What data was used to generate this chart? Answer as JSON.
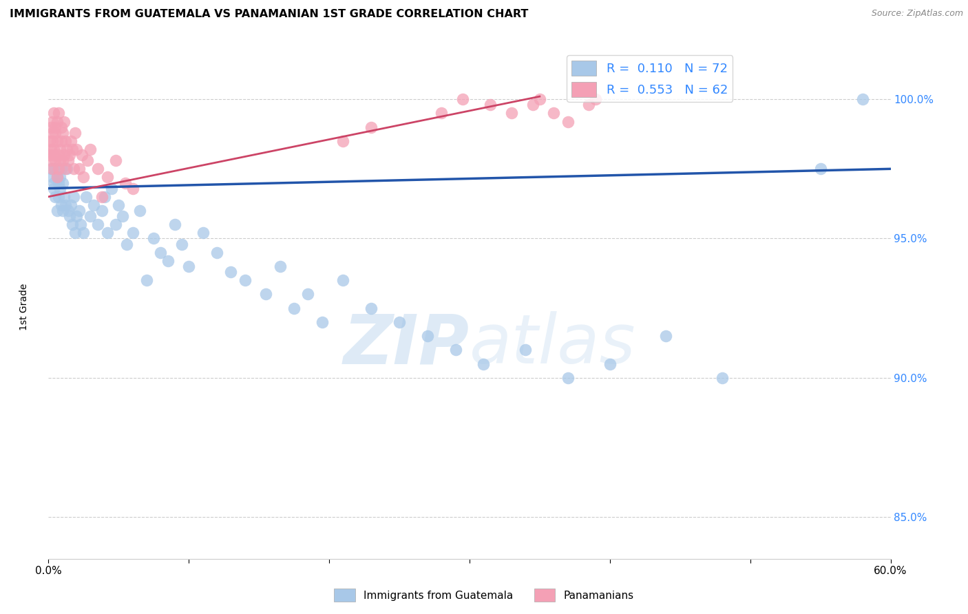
{
  "title": "IMMIGRANTS FROM GUATEMALA VS PANAMANIAN 1ST GRADE CORRELATION CHART",
  "source": "Source: ZipAtlas.com",
  "ylabel": "1st Grade",
  "yticks": [
    85.0,
    90.0,
    95.0,
    100.0
  ],
  "ytick_labels": [
    "85.0%",
    "90.0%",
    "95.0%",
    "100.0%"
  ],
  "xlim": [
    0.0,
    0.6
  ],
  "ylim": [
    83.5,
    101.8
  ],
  "legend_blue_r": "0.110",
  "legend_blue_n": "72",
  "legend_pink_r": "0.553",
  "legend_pink_n": "62",
  "legend_label_blue": "Immigrants from Guatemala",
  "legend_label_pink": "Panamanians",
  "blue_color": "#a8c8e8",
  "pink_color": "#f4a0b5",
  "line_blue_color": "#2255aa",
  "line_pink_color": "#cc4466",
  "watermark_zip": "ZIP",
  "watermark_atlas": "atlas",
  "blue_line_x0": 0.0,
  "blue_line_x1": 0.6,
  "blue_line_y0": 96.8,
  "blue_line_y1": 97.5,
  "pink_line_x0": 0.0,
  "pink_line_x1": 0.35,
  "pink_line_y0": 96.5,
  "pink_line_y1": 100.1,
  "blue_scatter_x": [
    0.002,
    0.003,
    0.004,
    0.004,
    0.005,
    0.005,
    0.006,
    0.006,
    0.007,
    0.007,
    0.008,
    0.008,
    0.009,
    0.009,
    0.01,
    0.01,
    0.011,
    0.012,
    0.013,
    0.014,
    0.015,
    0.016,
    0.017,
    0.018,
    0.019,
    0.02,
    0.022,
    0.023,
    0.025,
    0.027,
    0.03,
    0.032,
    0.035,
    0.038,
    0.04,
    0.042,
    0.045,
    0.048,
    0.05,
    0.053,
    0.056,
    0.06,
    0.065,
    0.07,
    0.075,
    0.08,
    0.085,
    0.09,
    0.095,
    0.1,
    0.11,
    0.12,
    0.13,
    0.14,
    0.155,
    0.165,
    0.175,
    0.185,
    0.195,
    0.21,
    0.23,
    0.25,
    0.27,
    0.29,
    0.31,
    0.34,
    0.37,
    0.4,
    0.44,
    0.48,
    0.55,
    0.58
  ],
  "blue_scatter_y": [
    97.5,
    97.2,
    97.0,
    96.8,
    97.5,
    96.5,
    97.2,
    96.0,
    97.0,
    96.5,
    97.2,
    96.8,
    97.5,
    96.2,
    96.0,
    97.0,
    96.5,
    96.2,
    97.5,
    96.0,
    95.8,
    96.2,
    95.5,
    96.5,
    95.2,
    95.8,
    96.0,
    95.5,
    95.2,
    96.5,
    95.8,
    96.2,
    95.5,
    96.0,
    96.5,
    95.2,
    96.8,
    95.5,
    96.2,
    95.8,
    94.8,
    95.2,
    96.0,
    93.5,
    95.0,
    94.5,
    94.2,
    95.5,
    94.8,
    94.0,
    95.2,
    94.5,
    93.8,
    93.5,
    93.0,
    94.0,
    92.5,
    93.0,
    92.0,
    93.5,
    92.5,
    92.0,
    91.5,
    91.0,
    90.5,
    91.0,
    90.0,
    90.5,
    91.5,
    90.0,
    97.5,
    100.0
  ],
  "pink_scatter_x": [
    0.001,
    0.001,
    0.002,
    0.002,
    0.002,
    0.003,
    0.003,
    0.003,
    0.003,
    0.004,
    0.004,
    0.004,
    0.005,
    0.005,
    0.005,
    0.006,
    0.006,
    0.006,
    0.007,
    0.007,
    0.007,
    0.008,
    0.008,
    0.009,
    0.009,
    0.01,
    0.01,
    0.011,
    0.011,
    0.012,
    0.012,
    0.013,
    0.014,
    0.015,
    0.016,
    0.017,
    0.018,
    0.019,
    0.02,
    0.022,
    0.024,
    0.025,
    0.028,
    0.03,
    0.035,
    0.038,
    0.042,
    0.048,
    0.055,
    0.06,
    0.21,
    0.23,
    0.28,
    0.295,
    0.315,
    0.33,
    0.345,
    0.35,
    0.36,
    0.37,
    0.385,
    0.39
  ],
  "pink_scatter_y": [
    98.0,
    98.5,
    99.0,
    97.8,
    98.2,
    97.5,
    98.5,
    99.2,
    98.8,
    98.0,
    99.5,
    98.2,
    97.8,
    98.8,
    99.0,
    98.5,
    97.2,
    99.2,
    98.0,
    99.5,
    97.5,
    98.2,
    97.8,
    99.0,
    98.5,
    97.8,
    98.8,
    98.0,
    99.2,
    97.5,
    98.5,
    98.2,
    97.8,
    98.0,
    98.5,
    98.2,
    97.5,
    98.8,
    98.2,
    97.5,
    98.0,
    97.2,
    97.8,
    98.2,
    97.5,
    96.5,
    97.2,
    97.8,
    97.0,
    96.8,
    98.5,
    99.0,
    99.5,
    100.0,
    99.8,
    99.5,
    99.8,
    100.0,
    99.5,
    99.2,
    99.8,
    100.0
  ]
}
